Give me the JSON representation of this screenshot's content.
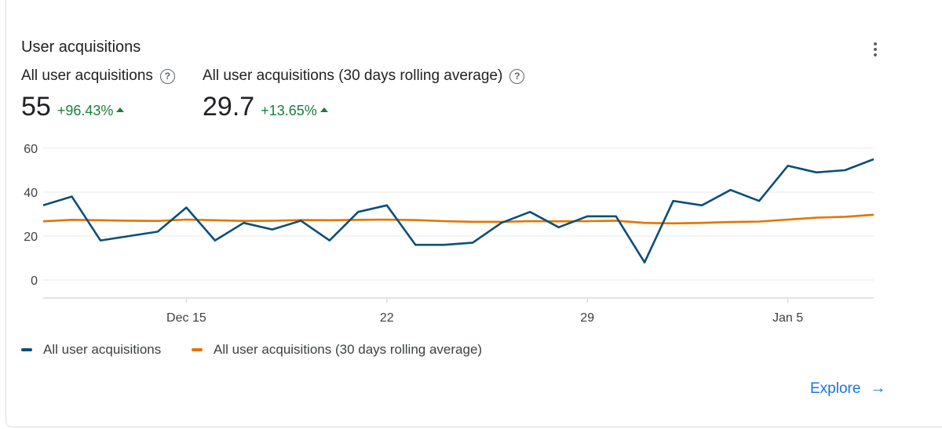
{
  "card": {
    "title": "User acquisitions",
    "menu_icon": "more-vert-icon"
  },
  "metrics": [
    {
      "label": "All user acquisitions",
      "value": "55",
      "delta": "+96.43%",
      "help_icon": "help-circle-icon"
    },
    {
      "label": "All user acquisitions (30 days rolling average)",
      "value": "29.7",
      "delta": "+13.65%",
      "help_icon": "help-circle-icon"
    }
  ],
  "colors": {
    "series1": "#0b4f78",
    "series2": "#e37400",
    "positive": "#188038",
    "link": "#1a73e8"
  },
  "chart_data": {
    "type": "line",
    "x_tick_labels": [
      "Dec 15",
      "22",
      "29",
      "Jan 5"
    ],
    "x_tick_indices": [
      5,
      12,
      19,
      26
    ],
    "y_ticks": [
      0,
      20,
      40,
      60
    ],
    "ylim": [
      -8,
      60
    ],
    "series": [
      {
        "name": "All user acquisitions",
        "values": [
          34,
          38,
          18,
          20,
          22,
          33,
          18,
          26,
          23,
          27,
          18,
          31,
          34,
          16,
          16,
          17,
          26,
          31,
          24,
          29,
          29,
          8,
          36,
          34,
          41,
          36,
          52,
          49,
          50,
          55
        ]
      },
      {
        "name": "All user acquisitions (30 days rolling average)",
        "values": [
          26.7,
          27.4,
          27.2,
          27.0,
          26.9,
          27.5,
          27.2,
          26.9,
          27.0,
          27.3,
          27.2,
          27.4,
          27.5,
          27.3,
          26.8,
          26.5,
          26.5,
          26.8,
          26.7,
          26.8,
          27.0,
          26.0,
          25.8,
          26.0,
          26.4,
          26.6,
          27.5,
          28.4,
          28.8,
          29.7
        ]
      }
    ],
    "legend_position": "bottom-left",
    "grid": true
  },
  "legend": [
    {
      "label": "All user acquisitions"
    },
    {
      "label": "All user acquisitions (30 days rolling average)"
    }
  ],
  "footer": {
    "explore_label": "Explore",
    "explore_icon": "arrow-right-icon"
  }
}
